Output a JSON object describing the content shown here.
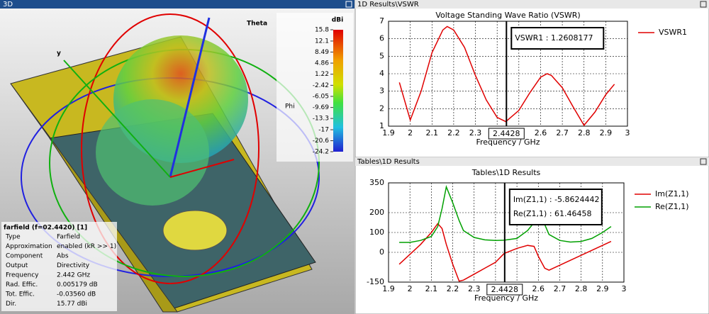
{
  "view3d": {
    "panel_title": "3D",
    "axis_labels": {
      "theta": "Theta",
      "y": "y",
      "phi": "Phi"
    },
    "colorbar": {
      "unit": "dBi",
      "ticks": [
        15.8,
        12.1,
        8.49,
        4.86,
        1.22,
        -2.42,
        -6.05,
        -9.69,
        -13.3,
        -17,
        -20.6,
        -24.2
      ]
    },
    "info": {
      "title": "farfield (f=02.4420) [1]",
      "rows": [
        [
          "Type",
          "Farfield"
        ],
        [
          "Approximation",
          "enabled (kR >> 1)"
        ],
        [
          "Component",
          "Abs"
        ],
        [
          "Output",
          "Directivity"
        ],
        [
          "Frequency",
          "2.442 GHz"
        ],
        [
          "Rad. Effic.",
          "0.005179 dB"
        ],
        [
          "Tot. Effic.",
          "-0.03560 dB"
        ],
        [
          "Dir.",
          "15.77 dBi"
        ]
      ]
    }
  },
  "chart_data": [
    {
      "type": "line",
      "panel_title": "1D Results\\VSWR",
      "title": "Voltage Standing Wave Ratio (VSWR)",
      "x_label": "Frequency / GHz",
      "x": [
        1.95,
        2.0,
        2.05,
        2.1,
        2.15,
        2.17,
        2.2,
        2.25,
        2.3,
        2.35,
        2.4,
        2.44,
        2.5,
        2.55,
        2.6,
        2.63,
        2.65,
        2.7,
        2.75,
        2.8,
        2.85,
        2.9,
        2.94
      ],
      "series": [
        {
          "name": "VSWR1",
          "color": "#e00000",
          "values": [
            3.5,
            1.35,
            3.0,
            5.2,
            6.5,
            6.7,
            6.5,
            5.5,
            3.9,
            2.5,
            1.5,
            1.26,
            1.9,
            2.9,
            3.8,
            4.0,
            3.9,
            3.2,
            2.1,
            1.05,
            1.8,
            2.8,
            3.4
          ]
        }
      ],
      "xlim": [
        1.9,
        3
      ],
      "xticks": [
        1.9,
        2,
        2.1,
        2.2,
        2.3,
        2.4,
        2.5,
        2.6,
        2.7,
        2.8,
        2.9,
        3
      ],
      "ylim": [
        1,
        7
      ],
      "yticks": [
        1,
        2,
        3,
        4,
        5,
        6,
        7
      ],
      "grid": true,
      "marker": {
        "x": 2.4428,
        "labels": [
          "VSWR1 : 1.2608177"
        ]
      }
    },
    {
      "type": "line",
      "panel_title": "Tables\\1D Results",
      "title": "Tables\\1D Results",
      "x_label": "Frequency / GHz",
      "x": [
        1.95,
        2.0,
        2.05,
        2.1,
        2.13,
        2.15,
        2.17,
        2.2,
        2.23,
        2.25,
        2.3,
        2.35,
        2.4,
        2.44,
        2.5,
        2.55,
        2.58,
        2.6,
        2.63,
        2.65,
        2.7,
        2.75,
        2.8,
        2.85,
        2.9,
        2.94
      ],
      "series": [
        {
          "name": "Im(Z1,1)",
          "color": "#e00000",
          "values": [
            -60,
            -10,
            40,
            100,
            145,
            120,
            40,
            -60,
            -145,
            -140,
            -110,
            -80,
            -50,
            -6,
            20,
            35,
            30,
            -20,
            -80,
            -90,
            -65,
            -40,
            -15,
            10,
            35,
            55
          ]
        },
        {
          "name": "Re(Z1,1)",
          "color": "#00a000",
          "values": [
            50,
            50,
            60,
            80,
            130,
            220,
            330,
            250,
            160,
            110,
            75,
            63,
            60,
            61,
            70,
            110,
            150,
            175,
            140,
            90,
            60,
            52,
            55,
            70,
            100,
            130
          ]
        }
      ],
      "xlim": [
        1.9,
        3
      ],
      "xticks": [
        1.9,
        2,
        2.1,
        2.2,
        2.3,
        2.4,
        2.5,
        2.6,
        2.7,
        2.8,
        2.9,
        3
      ],
      "ylim": [
        -150,
        350
      ],
      "yticks": [
        -150,
        0,
        100,
        200,
        350
      ],
      "grid": true,
      "marker": {
        "x": 2.4428,
        "labels": [
          "Im(Z1,1) : -5.8624442",
          "Re(Z1,1) : 61.46458"
        ]
      }
    }
  ]
}
